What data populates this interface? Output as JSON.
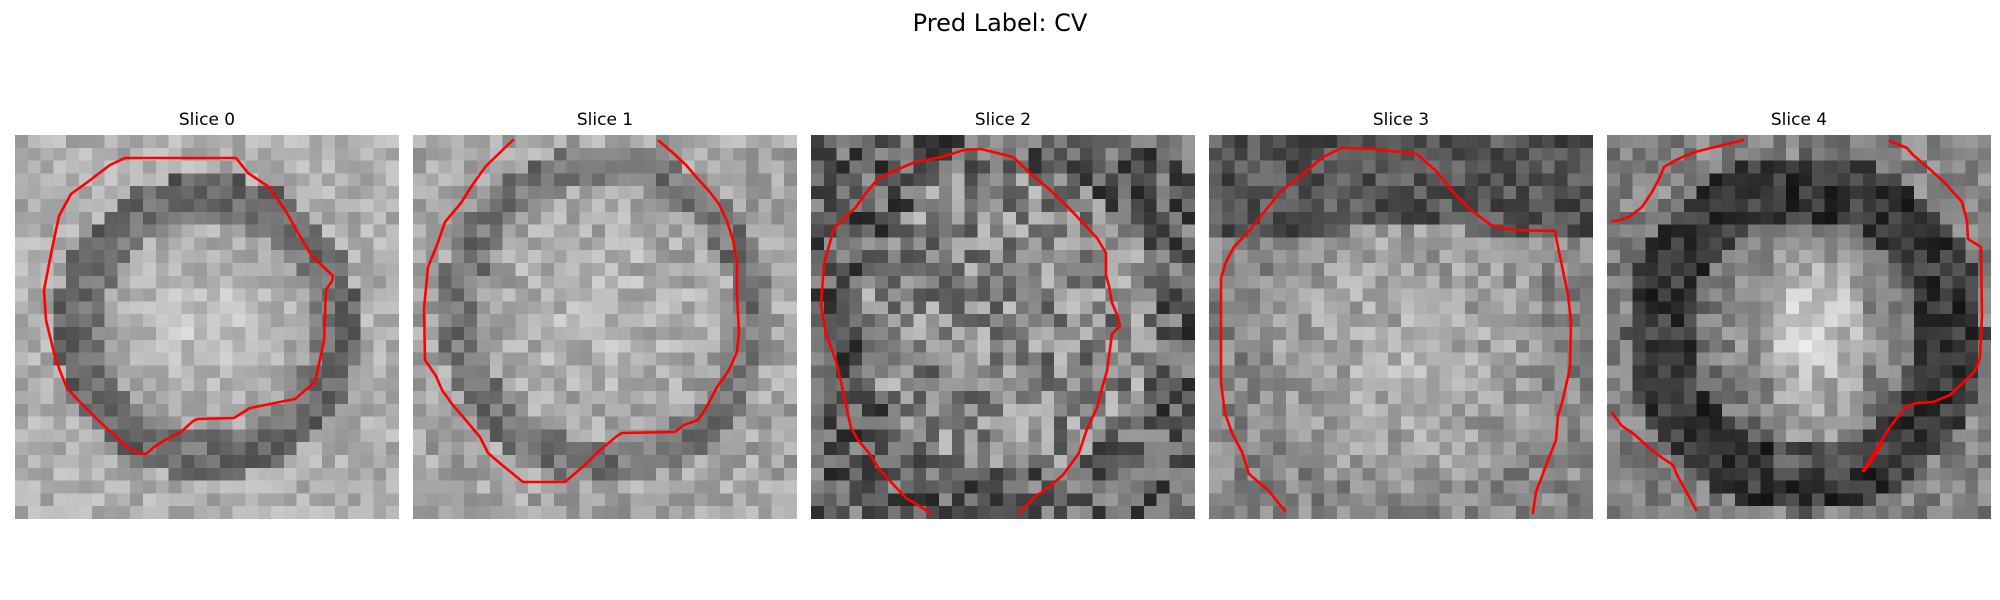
{
  "figure": {
    "title": "Pred Label: CV"
  },
  "colors": {
    "contour": "#ff0000",
    "background": "#ffffff"
  },
  "slices": [
    {
      "title": "Slice 0",
      "type": "bright-center-dark-ring"
    },
    {
      "title": "Slice 1",
      "type": "bright-center-light-ring"
    },
    {
      "title": "Slice 2",
      "type": "noisy-mid-gray"
    },
    {
      "title": "Slice 3",
      "type": "bright-center-dark-top"
    },
    {
      "title": "Slice 4",
      "type": "dark-with-bright-center-spots"
    }
  ]
}
